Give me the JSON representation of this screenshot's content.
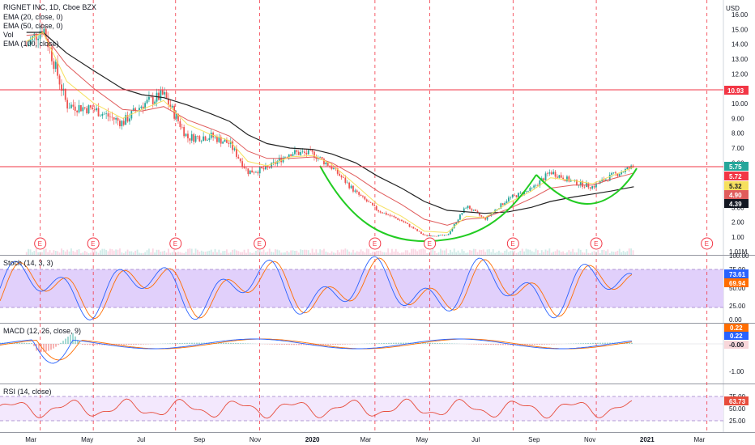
{
  "header": {
    "symbol": "RIGNET INC, 1D, Cboe BZX",
    "indicators": [
      "EMA (20, close, 0)",
      "EMA (50, close, 0)",
      "Vol",
      "EMA (100, close)"
    ]
  },
  "colors": {
    "price_up": "#26a69a",
    "price_down": "#ef5350",
    "ema20": "#f6e05e",
    "ema50": "#e05c5c",
    "ema100": "#222222",
    "cup": "#22cc22",
    "resistance": "#f23645",
    "stoch_k": "#2962ff",
    "stoch_d": "#ff6d00",
    "band": "#e1d0fb",
    "rsi": "#e74c3c"
  },
  "price_axis": {
    "currency": "USD",
    "ticks": [
      "16.00",
      "15.00",
      "14.00",
      "13.00",
      "12.00",
      "11.00",
      "10.00",
      "9.00",
      "8.00",
      "7.00",
      "6.00",
      "5.00",
      "4.00",
      "3.00",
      "2.00",
      "1.00"
    ]
  },
  "volume_axis_label": "1.01M",
  "badges": {
    "resistance_high": "10.93",
    "close": "5.75",
    "ema20": "5.72",
    "ema50": "5.32",
    "ema100_red": "4.90",
    "ema100": "4.39"
  },
  "earnings_marker": "E",
  "stoch": {
    "label": "Stoch (14, 3, 3)",
    "ticks": [
      "100.00",
      "75.00",
      "50.00",
      "25.00",
      "0.00"
    ],
    "k_value": "73.61",
    "d_value": "69.94"
  },
  "macd": {
    "label": "MACD (12, 26, close, 9)",
    "ticks": [
      "-1.00"
    ],
    "macd_value": "0.22",
    "signal_value": "0.22",
    "hist_value": "-0.00"
  },
  "rsi": {
    "label": "RSI (14, close)",
    "ticks": [
      "75.00",
      "50.00",
      "25.00"
    ],
    "value": "63.73"
  },
  "time_axis": [
    "Mar",
    "May",
    "Jul",
    "Sep",
    "Nov",
    "2020",
    "Mar",
    "May",
    "Jul",
    "Sep",
    "Nov",
    "2021",
    "Mar"
  ],
  "chart_data": {
    "type": "line",
    "title": "RIGNET INC, 1D, Cboe BZX",
    "ylim": [
      0.5,
      16.5
    ],
    "x": [
      "2019-02-25",
      "2019-03-15",
      "2019-04-10",
      "2019-05-10",
      "2019-06-10",
      "2019-07-01",
      "2019-07-25",
      "2019-08-20",
      "2019-09-15",
      "2019-10-05",
      "2019-10-25",
      "2019-11-15",
      "2019-12-10",
      "2020-01-05",
      "2020-01-25",
      "2020-02-20",
      "2020-03-15",
      "2020-04-10",
      "2020-05-05",
      "2020-05-30",
      "2020-06-20",
      "2020-07-10",
      "2020-08-05",
      "2020-08-30",
      "2020-09-20",
      "2020-10-15",
      "2020-11-05",
      "2020-11-25",
      "2020-12-20"
    ],
    "series": [
      {
        "values": [
          13.9,
          15.2,
          9.9,
          9.6,
          8.7,
          9.9,
          10.6,
          7.7,
          7.8,
          7.3,
          5.4,
          5.6,
          6.7,
          6.6,
          5.7,
          4.0,
          2.8,
          2.1,
          1.1,
          1.1,
          3.1,
          2.2,
          3.6,
          4.2,
          5.4,
          4.7,
          4.4,
          5.1,
          5.75
        ]
      },
      {
        "values": [
          14.2,
          14.8,
          11.5,
          10.0,
          9.0,
          9.6,
          10.2,
          8.6,
          7.9,
          7.5,
          6.1,
          5.8,
          6.4,
          6.5,
          5.9,
          4.5,
          3.2,
          2.4,
          1.4,
          1.3,
          2.4,
          2.3,
          3.3,
          4.1,
          5.0,
          4.8,
          4.6,
          5.1,
          5.72
        ]
      },
      {
        "values": [
          14.6,
          14.7,
          12.6,
          11.0,
          9.6,
          9.5,
          9.8,
          8.9,
          8.3,
          7.8,
          6.8,
          6.3,
          6.3,
          6.4,
          6.0,
          5.1,
          4.1,
          3.2,
          2.2,
          1.8,
          2.2,
          2.3,
          2.9,
          3.6,
          4.3,
          4.5,
          4.5,
          4.9,
          5.32
        ]
      },
      {
        "values": [
          14.8,
          14.8,
          13.4,
          12.2,
          11.0,
          10.6,
          10.4,
          9.9,
          9.3,
          8.8,
          7.9,
          7.3,
          7.0,
          6.9,
          6.6,
          6.0,
          5.1,
          4.3,
          3.4,
          2.8,
          2.7,
          2.6,
          2.7,
          3.0,
          3.4,
          3.7,
          3.9,
          4.1,
          4.39
        ]
      }
    ]
  }
}
